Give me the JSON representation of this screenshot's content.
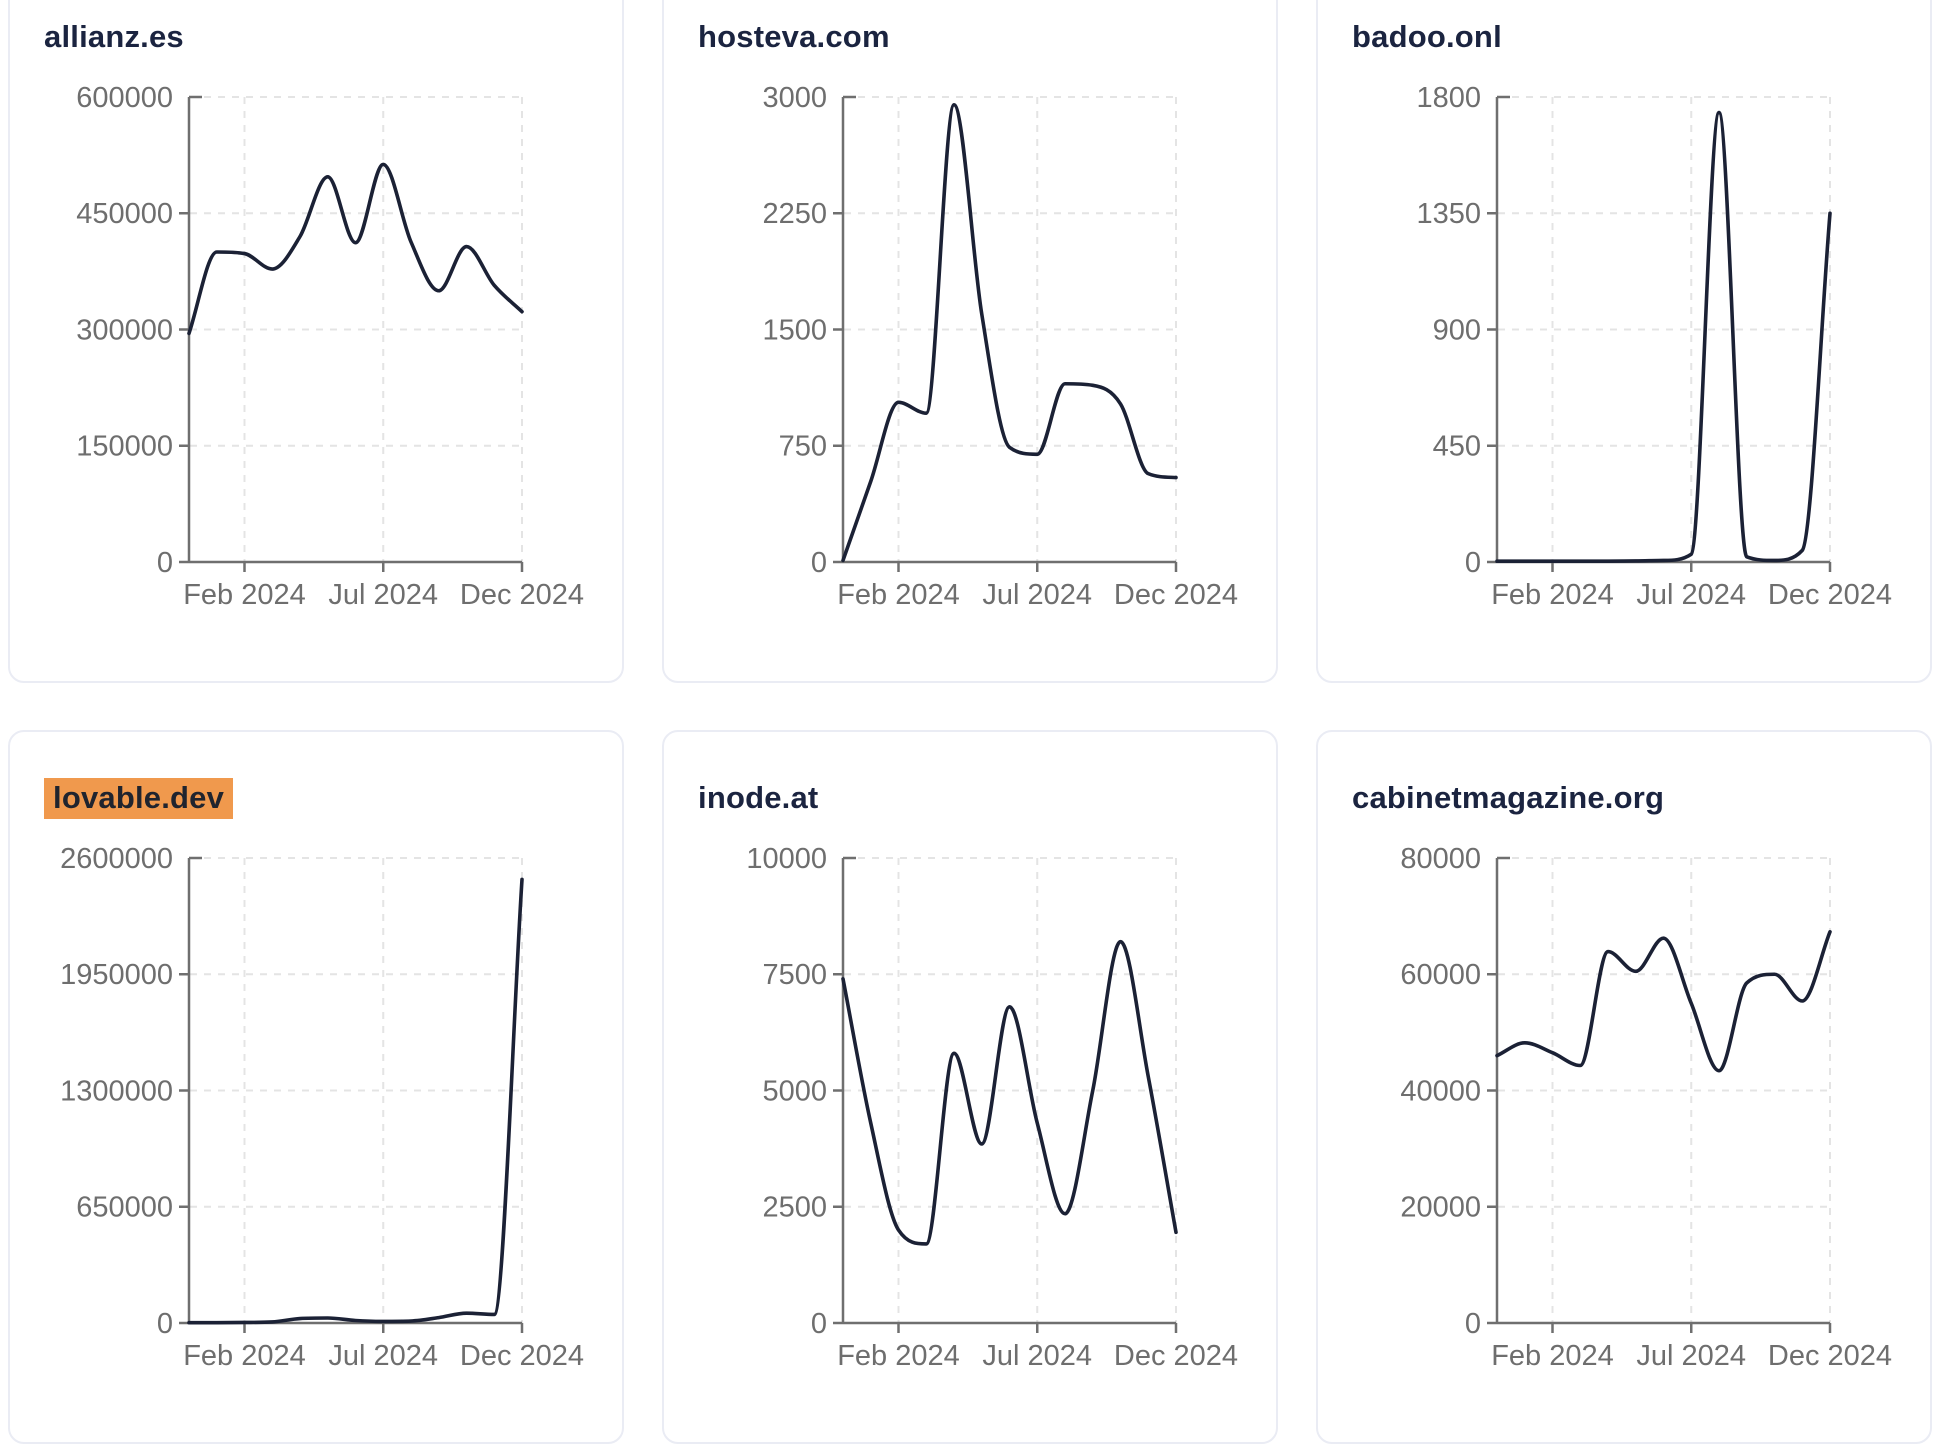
{
  "theme": {
    "page_background": "#ffffff",
    "card_background": "#ffffff",
    "card_border_color": "#eaecf4",
    "line_color": "#1b2135",
    "title_color": "#1b2440",
    "tick_label_color": "#6e6e6e",
    "axis_color": "#6f6f6f",
    "grid_color": "#e4e4e4",
    "highlight_background": "#f0994d",
    "highlight_text_color": "#20242e"
  },
  "chart_data": [
    {
      "type": "line",
      "title": "allianz.es",
      "highlighted": false,
      "x_tick_labels": [
        "Feb 2024",
        "Jul 2024",
        "Dec 2024"
      ],
      "x_tick_indices": [
        2,
        7,
        12
      ],
      "ylim": [
        0,
        600000
      ],
      "y_ticks": [
        0,
        150000,
        300000,
        450000,
        600000
      ],
      "grid": true,
      "values": [
        295000,
        400000,
        398000,
        378000,
        420000,
        497000,
        412000,
        513000,
        413000,
        350000,
        407000,
        357000,
        323000
      ]
    },
    {
      "type": "line",
      "title": "hosteva.com",
      "highlighted": false,
      "x_tick_labels": [
        "Feb 2024",
        "Jul 2024",
        "Dec 2024"
      ],
      "x_tick_indices": [
        2,
        7,
        12
      ],
      "ylim": [
        0,
        3000
      ],
      "y_ticks": [
        0,
        750,
        1500,
        2250,
        3000
      ],
      "grid": true,
      "values": [
        10,
        520,
        1030,
        960,
        2950,
        1600,
        740,
        695,
        1150,
        1140,
        1020,
        570,
        545
      ]
    },
    {
      "type": "line",
      "title": "badoo.onl",
      "highlighted": false,
      "x_tick_labels": [
        "Feb 2024",
        "Jul 2024",
        "Dec 2024"
      ],
      "x_tick_indices": [
        2,
        7,
        12
      ],
      "ylim": [
        0,
        1800
      ],
      "y_ticks": [
        0,
        450,
        900,
        1350,
        1800
      ],
      "grid": true,
      "values": [
        3,
        3,
        3,
        3,
        3,
        4,
        6,
        30,
        1740,
        20,
        6,
        45,
        1350
      ]
    },
    {
      "type": "line",
      "title": "lovable.dev",
      "highlighted": true,
      "x_tick_labels": [
        "Feb 2024",
        "Jul 2024",
        "Dec 2024"
      ],
      "x_tick_indices": [
        2,
        7,
        12
      ],
      "ylim": [
        0,
        2600000
      ],
      "y_ticks": [
        0,
        650000,
        1300000,
        1950000,
        2600000
      ],
      "grid": true,
      "values": [
        1500,
        2000,
        3000,
        6000,
        25000,
        28000,
        14000,
        9000,
        11000,
        30000,
        55000,
        48000,
        2480000
      ]
    },
    {
      "type": "line",
      "title": "inode.at",
      "highlighted": false,
      "x_tick_labels": [
        "Feb 2024",
        "Jul 2024",
        "Dec 2024"
      ],
      "x_tick_indices": [
        2,
        7,
        12
      ],
      "ylim": [
        0,
        10000
      ],
      "y_ticks": [
        0,
        2500,
        5000,
        7500,
        10000
      ],
      "grid": true,
      "values": [
        7400,
        4300,
        2000,
        1700,
        5800,
        3850,
        6800,
        4300,
        2350,
        5000,
        8200,
        5300,
        1950
      ]
    },
    {
      "type": "line",
      "title": "cabinetmagazine.org",
      "highlighted": false,
      "x_tick_labels": [
        "Feb 2024",
        "Jul 2024",
        "Dec 2024"
      ],
      "x_tick_indices": [
        2,
        7,
        12
      ],
      "ylim": [
        0,
        80000
      ],
      "y_ticks": [
        0,
        20000,
        40000,
        60000,
        80000
      ],
      "grid": true,
      "values": [
        46000,
        48200,
        46500,
        44300,
        63900,
        60500,
        66200,
        55000,
        43400,
        58500,
        60000,
        55400,
        67300
      ]
    }
  ]
}
